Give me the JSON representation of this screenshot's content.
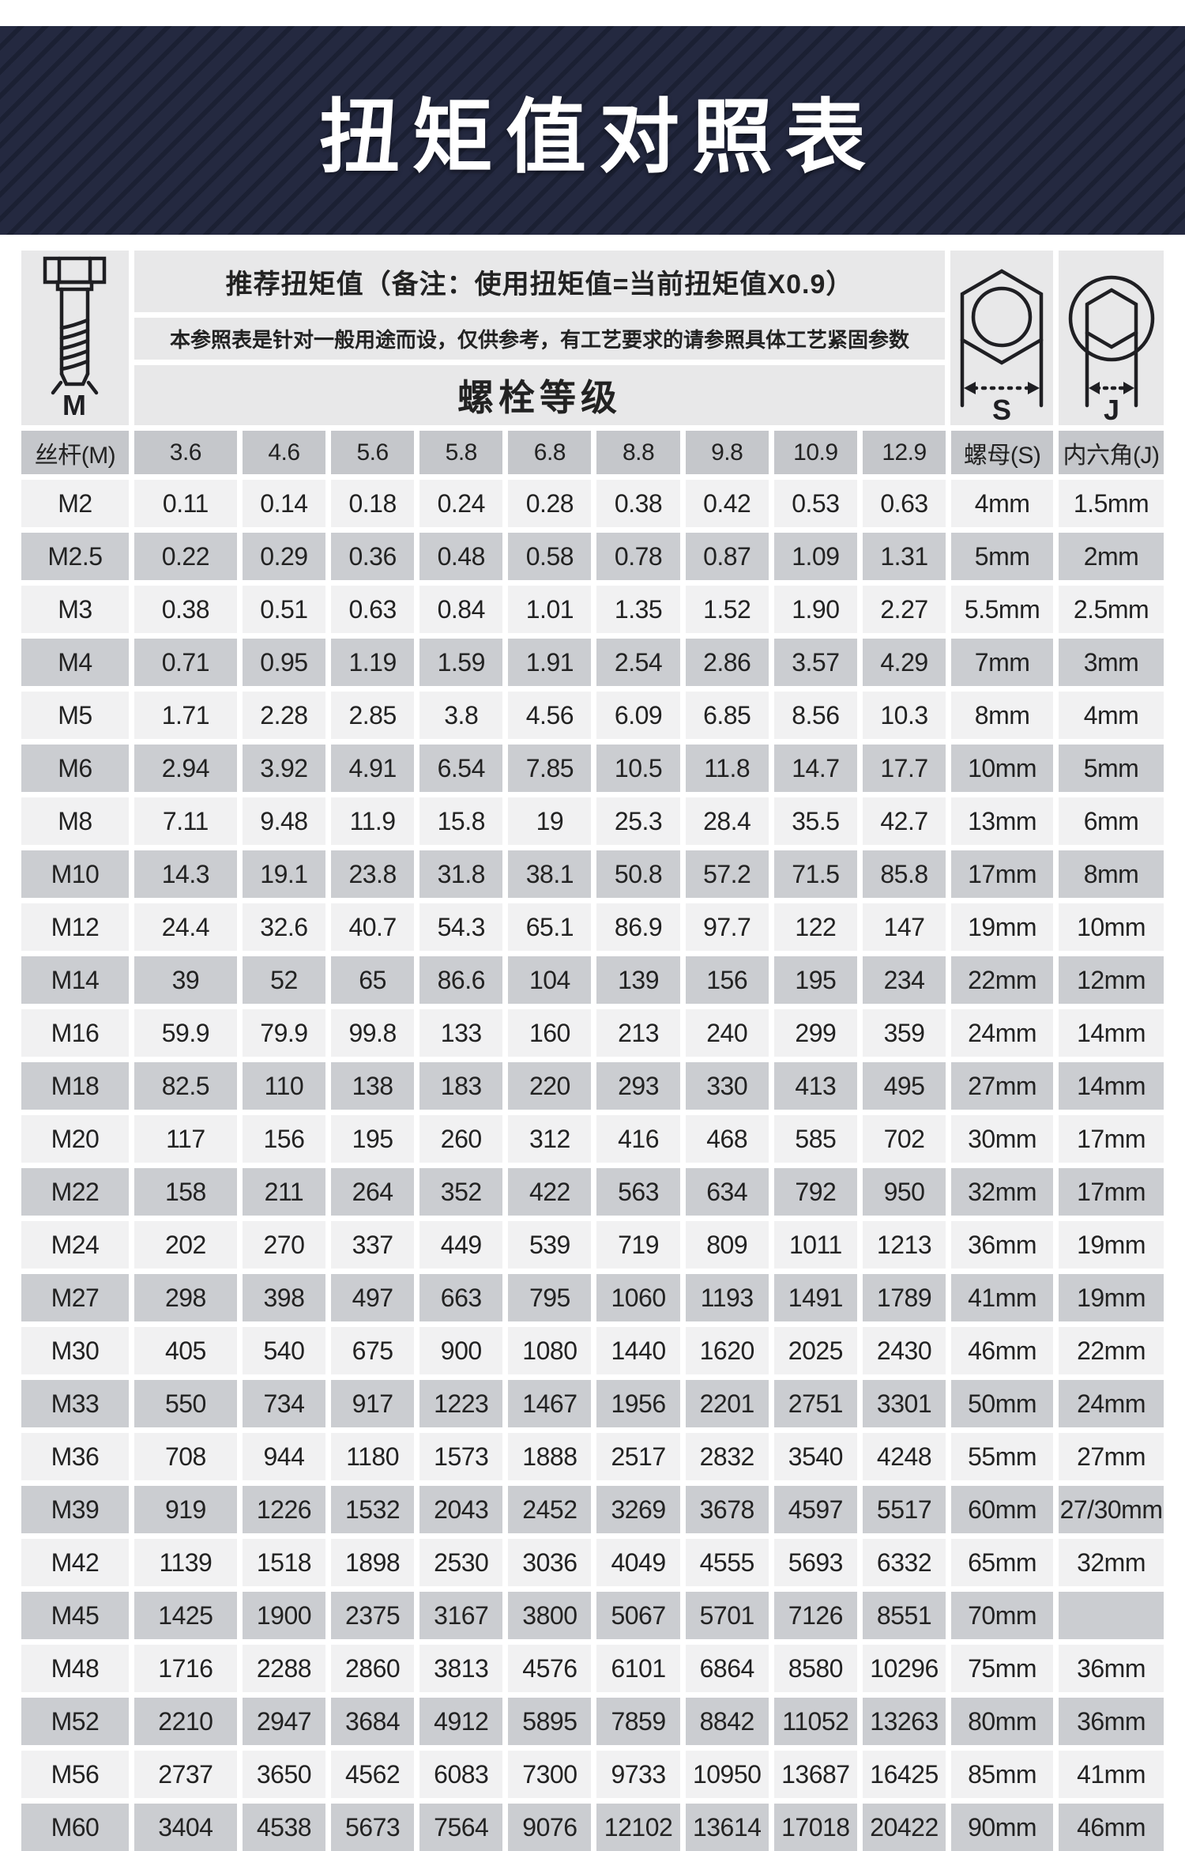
{
  "banner": {
    "title": "扭矩值对照表"
  },
  "header": {
    "title": "推荐扭矩值（备注：使用扭矩值=当前扭矩值X0.9）",
    "note": "本参照表是针对一般用途而设，仅供参考，有工艺要求的请参照具体工艺紧固参数",
    "grade_label": "螺栓等级",
    "bolt_icon_label": "M",
    "nut_icon_label": "S",
    "hex_icon_label": "J"
  },
  "chart_data": {
    "type": "table",
    "title": "扭矩值对照表",
    "columns": [
      "丝杆(M)",
      "3.6",
      "4.6",
      "5.6",
      "5.8",
      "6.8",
      "8.8",
      "9.8",
      "10.9",
      "12.9",
      "螺母(S)",
      "内六角(J)"
    ],
    "rows": [
      [
        "M2",
        "0.11",
        "0.14",
        "0.18",
        "0.24",
        "0.28",
        "0.38",
        "0.42",
        "0.53",
        "0.63",
        "4mm",
        "1.5mm"
      ],
      [
        "M2.5",
        "0.22",
        "0.29",
        "0.36",
        "0.48",
        "0.58",
        "0.78",
        "0.87",
        "1.09",
        "1.31",
        "5mm",
        "2mm"
      ],
      [
        "M3",
        "0.38",
        "0.51",
        "0.63",
        "0.84",
        "1.01",
        "1.35",
        "1.52",
        "1.90",
        "2.27",
        "5.5mm",
        "2.5mm"
      ],
      [
        "M4",
        "0.71",
        "0.95",
        "1.19",
        "1.59",
        "1.91",
        "2.54",
        "2.86",
        "3.57",
        "4.29",
        "7mm",
        "3mm"
      ],
      [
        "M5",
        "1.71",
        "2.28",
        "2.85",
        "3.8",
        "4.56",
        "6.09",
        "6.85",
        "8.56",
        "10.3",
        "8mm",
        "4mm"
      ],
      [
        "M6",
        "2.94",
        "3.92",
        "4.91",
        "6.54",
        "7.85",
        "10.5",
        "11.8",
        "14.7",
        "17.7",
        "10mm",
        "5mm"
      ],
      [
        "M8",
        "7.11",
        "9.48",
        "11.9",
        "15.8",
        "19",
        "25.3",
        "28.4",
        "35.5",
        "42.7",
        "13mm",
        "6mm"
      ],
      [
        "M10",
        "14.3",
        "19.1",
        "23.8",
        "31.8",
        "38.1",
        "50.8",
        "57.2",
        "71.5",
        "85.8",
        "17mm",
        "8mm"
      ],
      [
        "M12",
        "24.4",
        "32.6",
        "40.7",
        "54.3",
        "65.1",
        "86.9",
        "97.7",
        "122",
        "147",
        "19mm",
        "10mm"
      ],
      [
        "M14",
        "39",
        "52",
        "65",
        "86.6",
        "104",
        "139",
        "156",
        "195",
        "234",
        "22mm",
        "12mm"
      ],
      [
        "M16",
        "59.9",
        "79.9",
        "99.8",
        "133",
        "160",
        "213",
        "240",
        "299",
        "359",
        "24mm",
        "14mm"
      ],
      [
        "M18",
        "82.5",
        "110",
        "138",
        "183",
        "220",
        "293",
        "330",
        "413",
        "495",
        "27mm",
        "14mm"
      ],
      [
        "M20",
        "117",
        "156",
        "195",
        "260",
        "312",
        "416",
        "468",
        "585",
        "702",
        "30mm",
        "17mm"
      ],
      [
        "M22",
        "158",
        "211",
        "264",
        "352",
        "422",
        "563",
        "634",
        "792",
        "950",
        "32mm",
        "17mm"
      ],
      [
        "M24",
        "202",
        "270",
        "337",
        "449",
        "539",
        "719",
        "809",
        "1011",
        "1213",
        "36mm",
        "19mm"
      ],
      [
        "M27",
        "298",
        "398",
        "497",
        "663",
        "795",
        "1060",
        "1193",
        "1491",
        "1789",
        "41mm",
        "19mm"
      ],
      [
        "M30",
        "405",
        "540",
        "675",
        "900",
        "1080",
        "1440",
        "1620",
        "2025",
        "2430",
        "46mm",
        "22mm"
      ],
      [
        "M33",
        "550",
        "734",
        "917",
        "1223",
        "1467",
        "1956",
        "2201",
        "2751",
        "3301",
        "50mm",
        "24mm"
      ],
      [
        "M36",
        "708",
        "944",
        "1180",
        "1573",
        "1888",
        "2517",
        "2832",
        "3540",
        "4248",
        "55mm",
        "27mm"
      ],
      [
        "M39",
        "919",
        "1226",
        "1532",
        "2043",
        "2452",
        "3269",
        "3678",
        "4597",
        "5517",
        "60mm",
        "27/30mm"
      ],
      [
        "M42",
        "1139",
        "1518",
        "1898",
        "2530",
        "3036",
        "4049",
        "4555",
        "5693",
        "6332",
        "65mm",
        "32mm"
      ],
      [
        "M45",
        "1425",
        "1900",
        "2375",
        "3167",
        "3800",
        "5067",
        "5701",
        "7126",
        "8551",
        "70mm",
        ""
      ],
      [
        "M48",
        "1716",
        "2288",
        "2860",
        "3813",
        "4576",
        "6101",
        "6864",
        "8580",
        "10296",
        "75mm",
        "36mm"
      ],
      [
        "M52",
        "2210",
        "2947",
        "3684",
        "4912",
        "5895",
        "7859",
        "8842",
        "11052",
        "13263",
        "80mm",
        "36mm"
      ],
      [
        "M56",
        "2737",
        "3650",
        "4562",
        "6083",
        "7300",
        "9733",
        "10950",
        "13687",
        "16425",
        "85mm",
        "41mm"
      ],
      [
        "M60",
        "3404",
        "4538",
        "5673",
        "7564",
        "9076",
        "12102",
        "13614",
        "17018",
        "20422",
        "90mm",
        "46mm"
      ]
    ]
  },
  "colors": {
    "banner_bg": "#242940",
    "banner_stripe": "#1b2033",
    "row_light": "#f1f1f2",
    "row_dark": "#cbcdd1",
    "header_row_bg": "#c5c7cb",
    "panel_bg": "#e8e8e9",
    "text": "#222222"
  }
}
